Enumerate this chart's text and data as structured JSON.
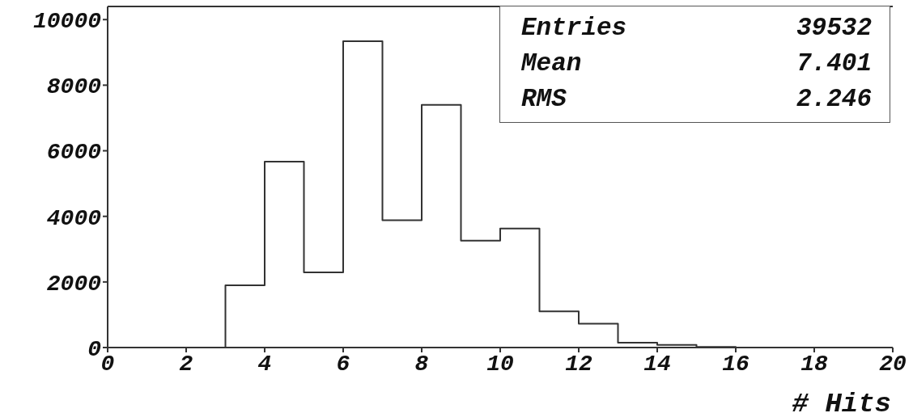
{
  "chart_data": {
    "type": "histogram",
    "bins": [
      0,
      1,
      2,
      3,
      4,
      5,
      6,
      7,
      8,
      9,
      10,
      11,
      12,
      13,
      14,
      15,
      16,
      17,
      18,
      19,
      20
    ],
    "values": [
      0,
      0,
      0,
      1900,
      5670,
      2290,
      9340,
      3880,
      7400,
      3260,
      3630,
      1100,
      730,
      150,
      80,
      20,
      0,
      0,
      0,
      0
    ],
    "color": "#333333",
    "xlabel": "# Hits",
    "xlim": [
      0,
      20
    ],
    "xticks": [
      0,
      2,
      4,
      6,
      8,
      10,
      12,
      14,
      16,
      18,
      20
    ],
    "ylim": [
      0,
      10400
    ],
    "yticks": [
      0,
      2000,
      4000,
      6000,
      8000,
      10000
    ],
    "annotations": [
      "Entries",
      "39532",
      "Mean",
      "7.401",
      "RMS",
      "2.246"
    ],
    "grid": false
  }
}
